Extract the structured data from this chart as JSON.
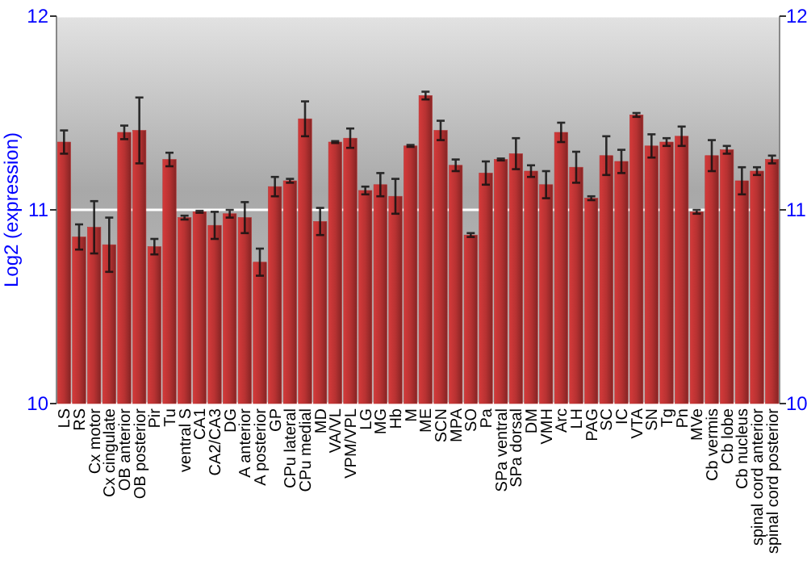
{
  "chart_data": {
    "type": "bar",
    "ylabel": "Log2 (expression)",
    "categories": [
      "LS",
      "RS",
      "Cx motor",
      "Cx cingulate",
      "OB anterior",
      "OB posterior",
      "Pir",
      "Tu",
      "ventral S",
      "CA1",
      "CA2/CA3",
      "DG",
      "A anterior",
      "A posterior",
      "GP",
      "CPu lateral",
      "CPu medial",
      "MD",
      "VA/VL",
      "VPM/VPL",
      "LG",
      "MG",
      "Hb",
      "M",
      "ME",
      "SCN",
      "MPA",
      "SO",
      "Pa",
      "SPa ventral",
      "SPa dorsal",
      "DM",
      "VMH",
      "Arc",
      "LH",
      "PAG",
      "SC",
      "IC",
      "VTA",
      "SN",
      "Tg",
      "Pn",
      "MVe",
      "Cb vermis",
      "Cb lobe",
      "Cb nucleus",
      "spinal cord anterior",
      "spinal cord posterior"
    ],
    "values": [
      11.35,
      10.86,
      10.91,
      10.82,
      11.4,
      11.41,
      10.81,
      11.26,
      10.96,
      10.99,
      10.92,
      10.98,
      10.96,
      10.73,
      11.12,
      11.15,
      11.47,
      10.94,
      11.35,
      11.37,
      11.1,
      11.13,
      11.07,
      11.33,
      11.59,
      11.41,
      11.23,
      10.87,
      11.19,
      11.26,
      11.29,
      11.2,
      11.13,
      11.4,
      11.22,
      11.06,
      11.28,
      11.25,
      11.49,
      11.33,
      11.35,
      11.38,
      10.99,
      11.28,
      11.31,
      11.15,
      11.2,
      11.26
    ],
    "errors": [
      0.06,
      0.065,
      0.135,
      0.14,
      0.035,
      0.17,
      0.04,
      0.035,
      0.01,
      0.005,
      0.07,
      0.02,
      0.08,
      0.07,
      0.05,
      0.01,
      0.09,
      0.07,
      0.005,
      0.05,
      0.02,
      0.06,
      0.09,
      0.005,
      0.02,
      0.05,
      0.03,
      0.01,
      0.06,
      0.005,
      0.08,
      0.03,
      0.07,
      0.05,
      0.08,
      0.01,
      0.1,
      0.06,
      0.01,
      0.06,
      0.02,
      0.05,
      0.01,
      0.08,
      0.02,
      0.07,
      0.02,
      0.02
    ],
    "color": "#b83232",
    "ylim": [
      10,
      12
    ],
    "yticks": [
      10,
      11,
      12
    ],
    "y2lim": [
      10,
      12
    ],
    "y2ticks": [
      10,
      11,
      12
    ],
    "grid": "y"
  }
}
